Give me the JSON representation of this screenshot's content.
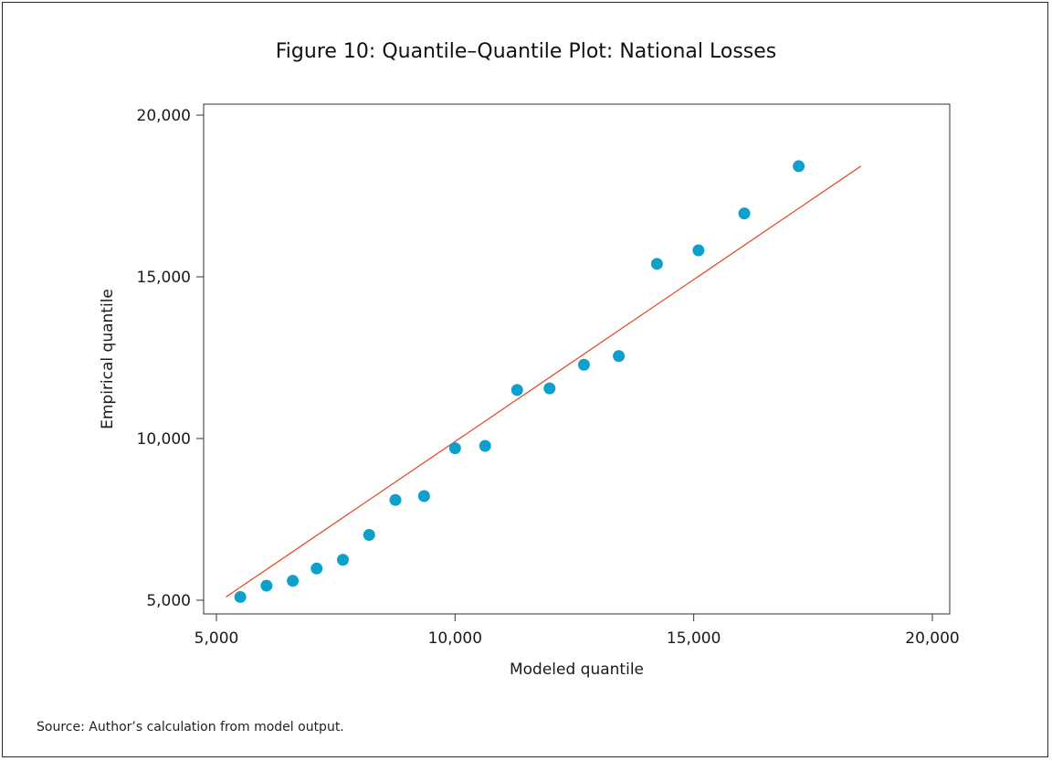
{
  "page": {
    "title": "Figure 10: Quantile–Quantile Plot: National Losses",
    "source": "Source: Author’s calculation from model output."
  },
  "chart_data": {
    "type": "scatter",
    "title": "Figure 10: Quantile–Quantile Plot: National Losses",
    "xlabel": "Modeled quantile",
    "ylabel": "Empirical quantile",
    "xlim": [
      5000,
      20000
    ],
    "ylim": [
      5000,
      20000
    ],
    "x_ticks": [
      5000,
      10000,
      15000,
      20000
    ],
    "y_ticks": [
      5000,
      10000,
      15000,
      20000
    ],
    "x_tick_labels": [
      "5,000",
      "10,000",
      "15,000",
      "20,000"
    ],
    "y_tick_labels": [
      "5,000",
      "10,000",
      "15,000",
      "20,000"
    ],
    "grid": false,
    "colors": {
      "points": "#0f9fcd",
      "reference_line": "#e2522b",
      "axis": "#333333"
    },
    "points": [
      {
        "x": 5500,
        "y": 5100
      },
      {
        "x": 6050,
        "y": 5450
      },
      {
        "x": 6600,
        "y": 5600
      },
      {
        "x": 7100,
        "y": 5980
      },
      {
        "x": 7650,
        "y": 6250
      },
      {
        "x": 8200,
        "y": 7020
      },
      {
        "x": 8750,
        "y": 8100
      },
      {
        "x": 9350,
        "y": 8220
      },
      {
        "x": 10000,
        "y": 9700
      },
      {
        "x": 10630,
        "y": 9770
      },
      {
        "x": 11300,
        "y": 11500
      },
      {
        "x": 11980,
        "y": 11550
      },
      {
        "x": 12700,
        "y": 12280
      },
      {
        "x": 13430,
        "y": 12550
      },
      {
        "x": 14230,
        "y": 15400
      },
      {
        "x": 15100,
        "y": 15820
      },
      {
        "x": 16060,
        "y": 16960
      },
      {
        "x": 17200,
        "y": 18420
      }
    ],
    "reference_line": {
      "x": [
        5200,
        18500
      ],
      "y": [
        5100,
        18420
      ]
    }
  }
}
